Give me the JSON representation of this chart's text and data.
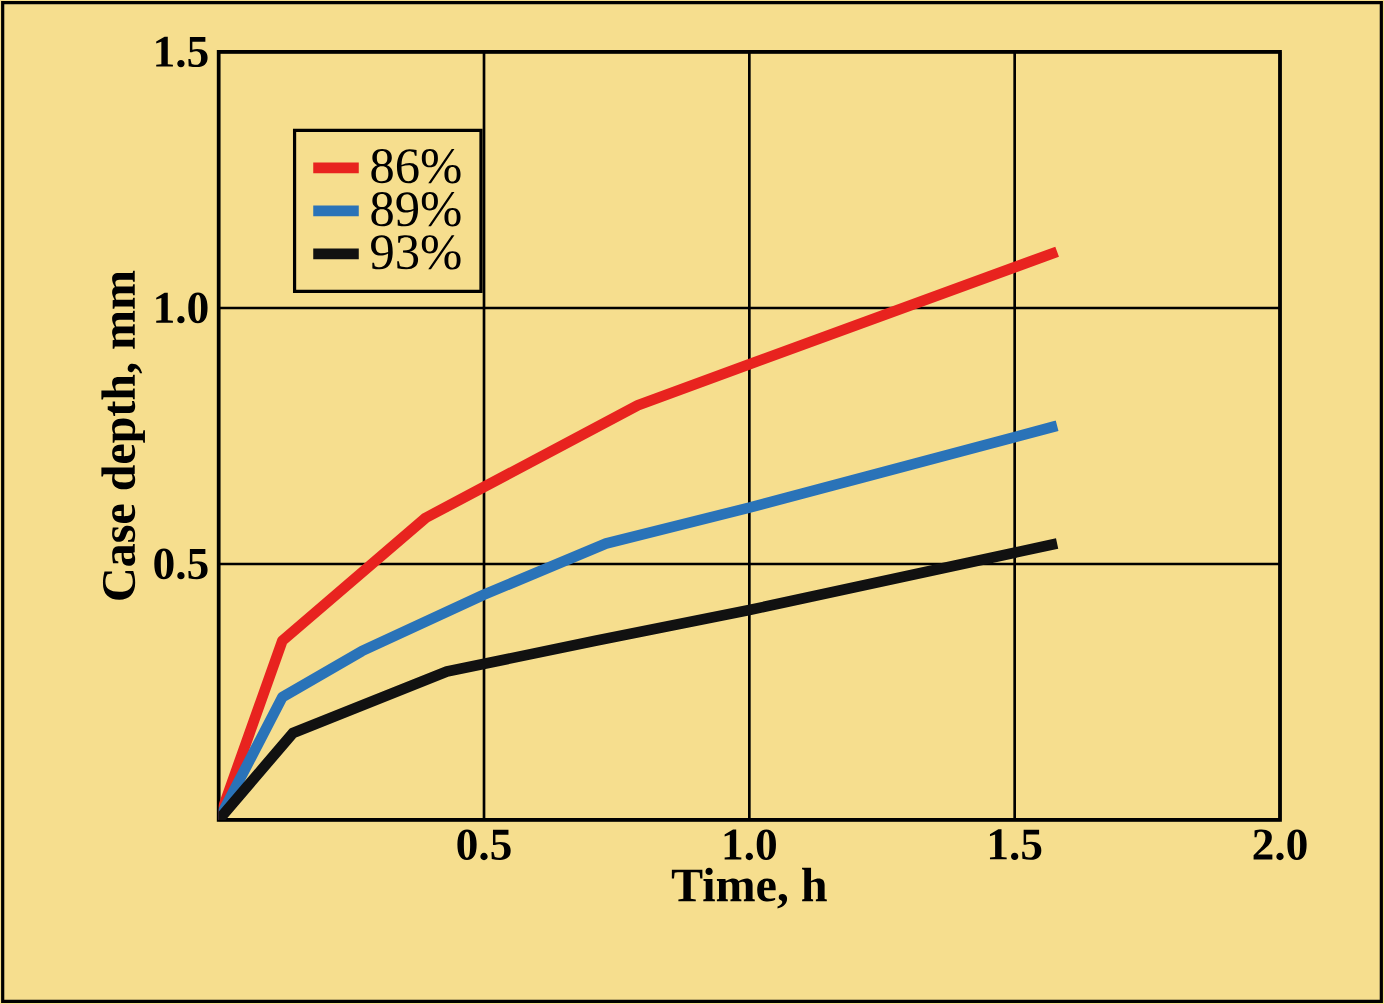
{
  "chart_data": {
    "type": "line",
    "xlabel": "Time, h",
    "ylabel": "Case depth, mm",
    "xlim": [
      0,
      2.0
    ],
    "ylim": [
      0,
      1.5
    ],
    "xticks": [
      {
        "value": 0,
        "label": null
      },
      0.5,
      {
        "value": 1,
        "label": "1.0"
      },
      1.5,
      {
        "value": 2,
        "label": "2.0"
      }
    ],
    "yticks": [
      {
        "value": 0,
        "label": null
      },
      0.5,
      {
        "value": 1,
        "label": "1.0"
      },
      1.5
    ],
    "grid": true,
    "legend": "top left",
    "marker": "none",
    "line_style": "solid",
    "series": [
      {
        "name": "86%",
        "color": "#e8231f",
        "x": [
          0,
          0.12,
          0.39,
          0.79,
          1.0,
          1.58
        ],
        "values": [
          0,
          0.35,
          0.59,
          0.81,
          0.89,
          1.11
        ]
      },
      {
        "name": "89%",
        "color": "#2a73b8",
        "x": [
          0,
          0.12,
          0.27,
          0.5,
          0.73,
          1.0,
          1.58
        ],
        "values": [
          0,
          0.24,
          0.33,
          0.44,
          0.54,
          0.61,
          0.77
        ]
      },
      {
        "name": "93%",
        "color": "#111111",
        "x": [
          0,
          0.14,
          0.43,
          0.71,
          1.0,
          1.58
        ],
        "values": [
          0,
          0.17,
          0.29,
          0.35,
          0.41,
          0.54
        ]
      }
    ]
  }
}
